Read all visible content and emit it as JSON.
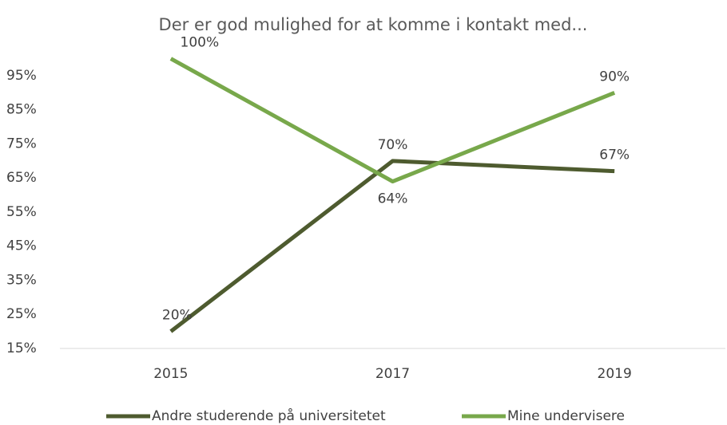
{
  "chart_data": {
    "type": "line",
    "title": "Der er god mulighed for at komme i kontakt med...",
    "categories": [
      "2015",
      "2017",
      "2019"
    ],
    "series": [
      {
        "name": "Andre studerende på universitetet",
        "color": "#4e5b2f",
        "values": [
          20,
          70,
          67
        ],
        "value_labels": [
          "20%",
          "70%",
          "67%"
        ]
      },
      {
        "name": "Mine undervisere",
        "color": "#78a84b",
        "values": [
          100,
          64,
          90
        ],
        "value_labels": [
          "100%",
          "64%",
          "90%"
        ]
      }
    ],
    "ylim": [
      15,
      100
    ],
    "yticks": [
      {
        "value": 15,
        "label": "15%"
      },
      {
        "value": 25,
        "label": "25%"
      },
      {
        "value": 35,
        "label": "35%"
      },
      {
        "value": 45,
        "label": "45%"
      },
      {
        "value": 55,
        "label": "55%"
      },
      {
        "value": 65,
        "label": "65%"
      },
      {
        "value": 75,
        "label": "75%"
      },
      {
        "value": 85,
        "label": "85%"
      },
      {
        "value": 95,
        "label": "95%"
      }
    ],
    "grid": false,
    "legend": "bottom"
  }
}
